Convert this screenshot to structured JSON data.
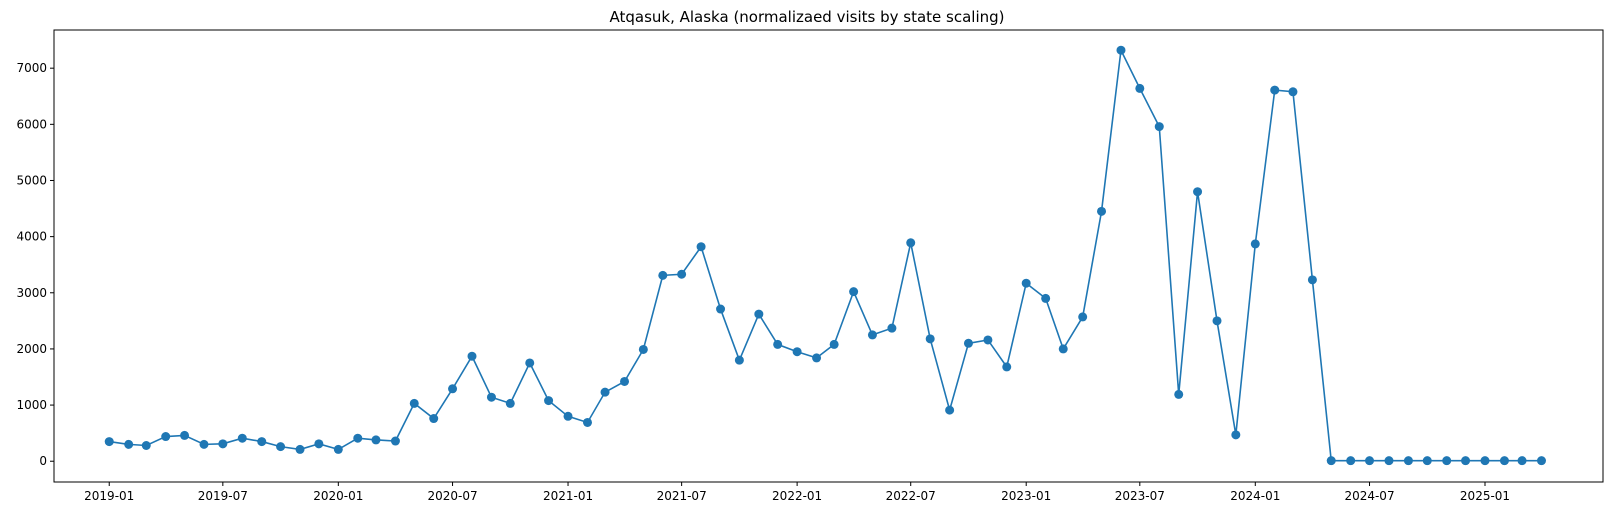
{
  "chart_data": {
    "type": "line",
    "title": "Atqasuk, Alaska (normalizaed visits by state scaling)",
    "xlabel": "",
    "ylabel": "",
    "x_axis": "date",
    "xlim": [
      "2018-10-05",
      "2025-07-08"
    ],
    "ylim": [
      -370,
      7680
    ],
    "x_ticks": [
      "2019-01",
      "2019-07",
      "2020-01",
      "2020-07",
      "2021-01",
      "2021-07",
      "2022-01",
      "2022-07",
      "2023-01",
      "2023-07",
      "2024-01",
      "2024-07",
      "2025-01"
    ],
    "y_ticks": [
      0,
      1000,
      2000,
      3000,
      4000,
      5000,
      6000,
      7000
    ],
    "grid": false,
    "legend": "none",
    "marker": "circle",
    "color": "#1f77b4",
    "series": [
      {
        "x": [
          "2019-01-01",
          "2019-02-01",
          "2019-03-01",
          "2019-04-01",
          "2019-05-01",
          "2019-06-01",
          "2019-07-01",
          "2019-08-01",
          "2019-09-01",
          "2019-10-01",
          "2019-11-01",
          "2019-12-01",
          "2020-01-01",
          "2020-02-01",
          "2020-03-01",
          "2020-04-01",
          "2020-05-01",
          "2020-06-01",
          "2020-07-01",
          "2020-08-01",
          "2020-09-01",
          "2020-10-01",
          "2020-11-01",
          "2020-12-01",
          "2021-01-01",
          "2021-02-01",
          "2021-03-01",
          "2021-04-01",
          "2021-05-01",
          "2021-06-01",
          "2021-07-01",
          "2021-08-01",
          "2021-09-01",
          "2021-10-01",
          "2021-11-01",
          "2021-12-01",
          "2022-01-01",
          "2022-02-01",
          "2022-03-01",
          "2022-04-01",
          "2022-05-01",
          "2022-06-01",
          "2022-07-01",
          "2022-08-01",
          "2022-09-01",
          "2022-10-01",
          "2022-11-01",
          "2022-12-01",
          "2023-01-01",
          "2023-02-01",
          "2023-03-01",
          "2023-04-01",
          "2023-05-01",
          "2023-06-01",
          "2023-07-01",
          "2023-08-01",
          "2023-09-01",
          "2023-10-01",
          "2023-11-01",
          "2023-12-01",
          "2024-01-01",
          "2024-02-01",
          "2024-03-01",
          "2024-04-01",
          "2024-05-01",
          "2024-06-01",
          "2024-07-01",
          "2024-08-01",
          "2024-09-01",
          "2024-10-01",
          "2024-11-01",
          "2024-12-01",
          "2025-01-01",
          "2025-02-01",
          "2025-03-01",
          "2025-04-01"
        ],
        "values": [
          350,
          300,
          280,
          440,
          460,
          300,
          310,
          410,
          350,
          260,
          210,
          310,
          210,
          410,
          380,
          360,
          1030,
          760,
          1290,
          1870,
          1140,
          1030,
          1750,
          1080,
          800,
          690,
          1230,
          1420,
          1990,
          3310,
          3330,
          3820,
          2710,
          1800,
          2620,
          2080,
          1950,
          1840,
          2080,
          3020,
          2250,
          2370,
          3890,
          2180,
          910,
          2100,
          2160,
          1680,
          3170,
          2900,
          2000,
          2570,
          4450,
          7320,
          6640,
          5960,
          1190,
          4800,
          2500,
          470,
          3870,
          6610,
          6580,
          3230,
          10,
          10,
          10,
          10,
          10,
          10,
          10,
          10,
          10,
          10,
          10,
          10
        ]
      }
    ]
  }
}
